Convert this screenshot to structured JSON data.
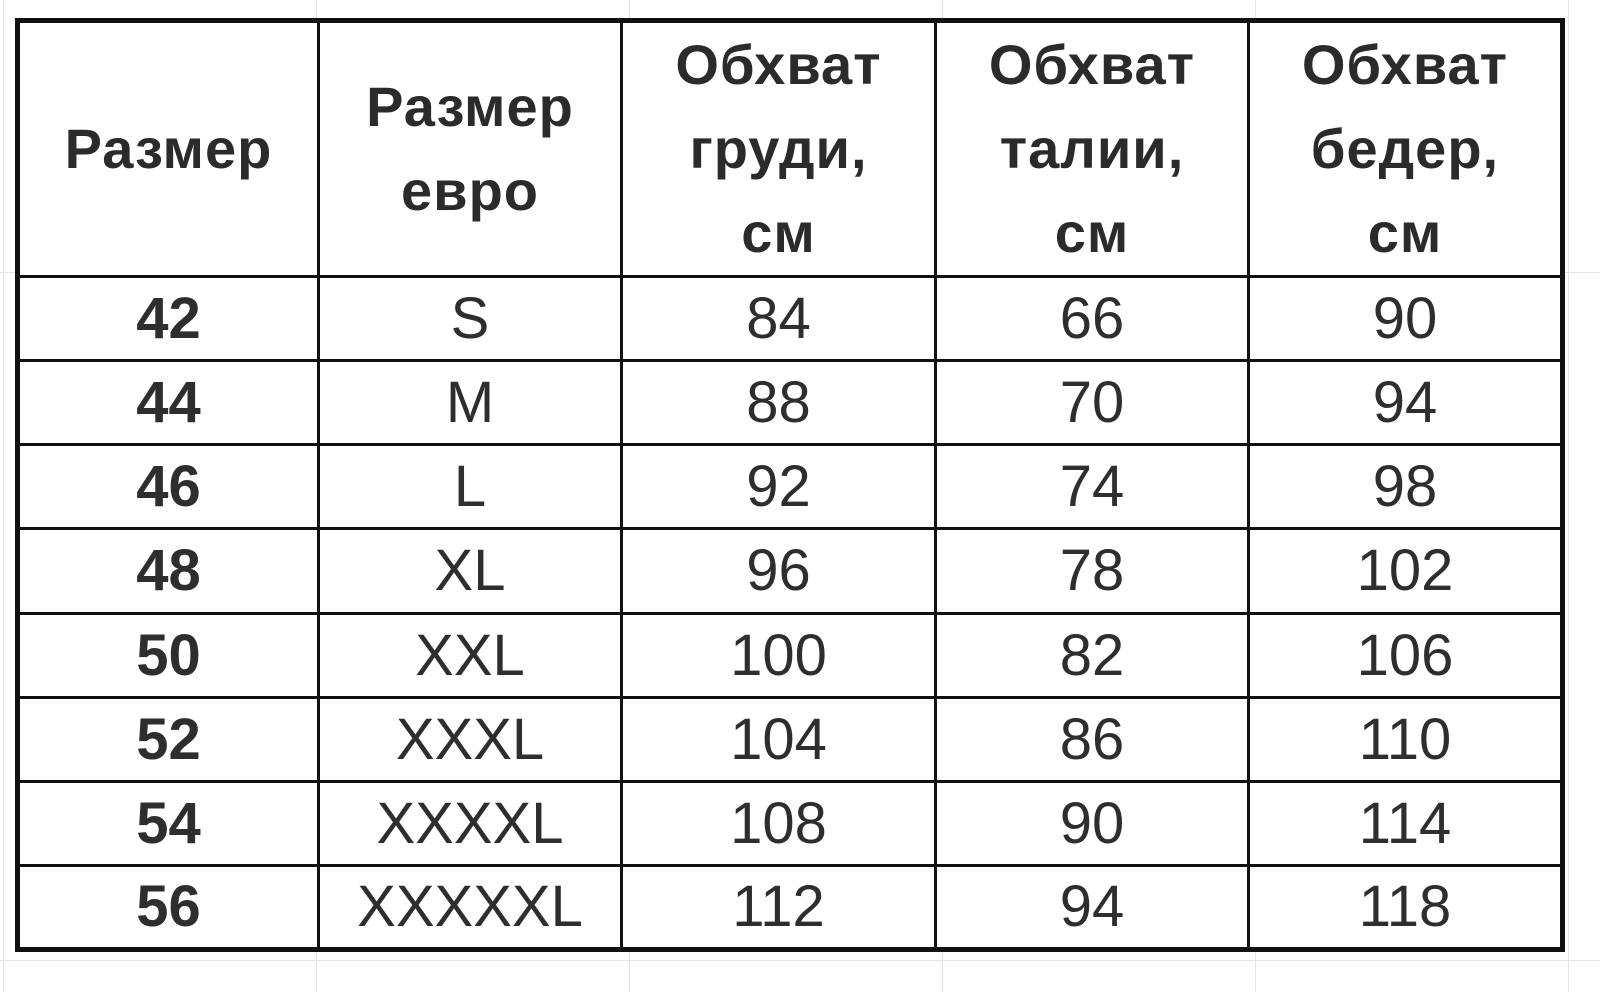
{
  "table": {
    "headers": [
      [
        "Размер"
      ],
      [
        "Размер",
        "евро"
      ],
      [
        "Обхват",
        "груди,",
        "см"
      ],
      [
        "Обхват",
        "талии,",
        "см"
      ],
      [
        "Обхват",
        "бедер,",
        "см"
      ]
    ],
    "rows": [
      [
        "42",
        "S",
        "84",
        "66",
        "90"
      ],
      [
        "44",
        "M",
        "88",
        "70",
        "94"
      ],
      [
        "46",
        "L",
        "92",
        "74",
        "98"
      ],
      [
        "48",
        "XL",
        "96",
        "78",
        "102"
      ],
      [
        "50",
        "XXL",
        "100",
        "82",
        "106"
      ],
      [
        "52",
        "XXXL",
        "104",
        "86",
        "110"
      ],
      [
        "54",
        "XXXXL",
        "108",
        "90",
        "114"
      ],
      [
        "56",
        "XXXXXL",
        "112",
        "94",
        "118"
      ]
    ]
  }
}
